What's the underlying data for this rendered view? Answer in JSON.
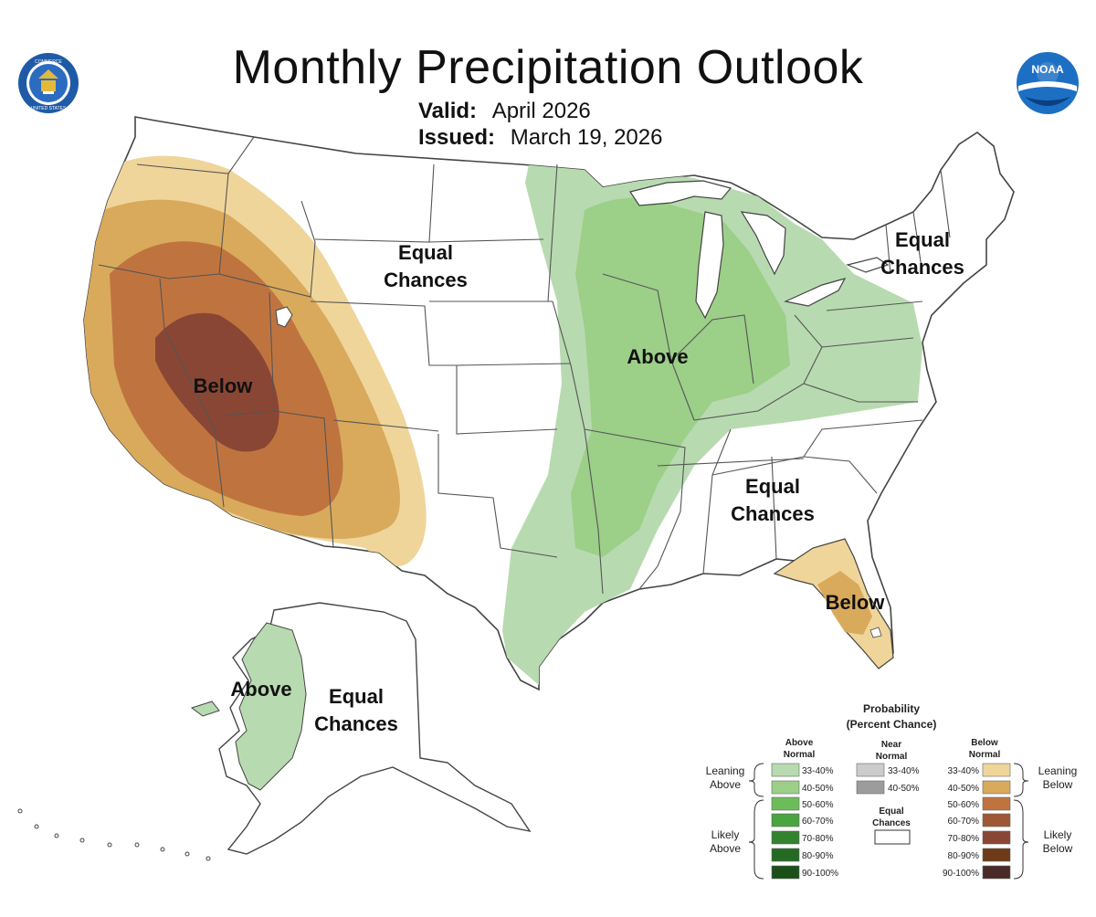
{
  "header": {
    "title": "Monthly Precipitation Outlook",
    "valid_label": "Valid:",
    "valid_value": "April 2026",
    "issued_label": "Issued:",
    "issued_value": "March 19, 2026"
  },
  "logos": {
    "commerce": {
      "icon": "dept-of-commerce-seal-icon",
      "text": "DEPARTMENT OF COMMERCE · UNITED STATES OF AMERICA"
    },
    "noaa": {
      "icon": "noaa-logo-icon",
      "text": "NOAA"
    }
  },
  "map_labels": {
    "west_below": "Below",
    "plains_equal_1": "Equal",
    "plains_equal_2": "Chances",
    "central_above": "Above",
    "northeast_equal_1": "Equal",
    "northeast_equal_2": "Chances",
    "southeast_equal_1": "Equal",
    "southeast_equal_2": "Chances",
    "florida_below": "Below",
    "alaska_above": "Above",
    "alaska_equal_1": "Equal",
    "alaska_equal_2": "Chances"
  },
  "colors": {
    "above_33_40": "#b8dab0",
    "above_40_50": "#9ccf88",
    "above_50_60": "#6cbd5a",
    "above_60_70": "#4aa43f",
    "above_70_80": "#33832e",
    "above_80_90": "#256a24",
    "above_90_100": "#1b4f1a",
    "near_33_40": "#cccccc",
    "near_40_50": "#9c9c9c",
    "below_33_40": "#f0d59a",
    "below_40_50": "#d9aa5c",
    "below_50_60": "#bf7440",
    "below_60_70": "#9e5836",
    "below_70_80": "#8a4634",
    "below_80_90": "#6e3a17",
    "below_90_100": "#4a2a26",
    "border": "#555555",
    "noaa_blue": "#1d6fc4"
  },
  "legend": {
    "title_1": "Probability",
    "title_2": "(Percent Chance)",
    "above_head_1": "Above",
    "above_head_2": "Normal",
    "near_head_1": "Near",
    "near_head_2": "Normal",
    "below_head_1": "Below",
    "below_head_2": "Normal",
    "above_bins": [
      "33-40%",
      "40-50%",
      "50-60%",
      "60-70%",
      "70-80%",
      "80-90%",
      "90-100%"
    ],
    "near_bins": [
      "33-40%",
      "40-50%"
    ],
    "below_bins": [
      "33-40%",
      "40-50%",
      "50-60%",
      "60-70%",
      "70-80%",
      "80-90%",
      "90-100%"
    ],
    "equal_1": "Equal",
    "equal_2": "Chances",
    "leaning_above_1": "Leaning",
    "leaning_above_2": "Above",
    "likely_above_1": "Likely",
    "likely_above_2": "Above",
    "leaning_below_1": "Leaning",
    "leaning_below_2": "Below",
    "likely_below_1": "Likely",
    "likely_below_2": "Below"
  }
}
